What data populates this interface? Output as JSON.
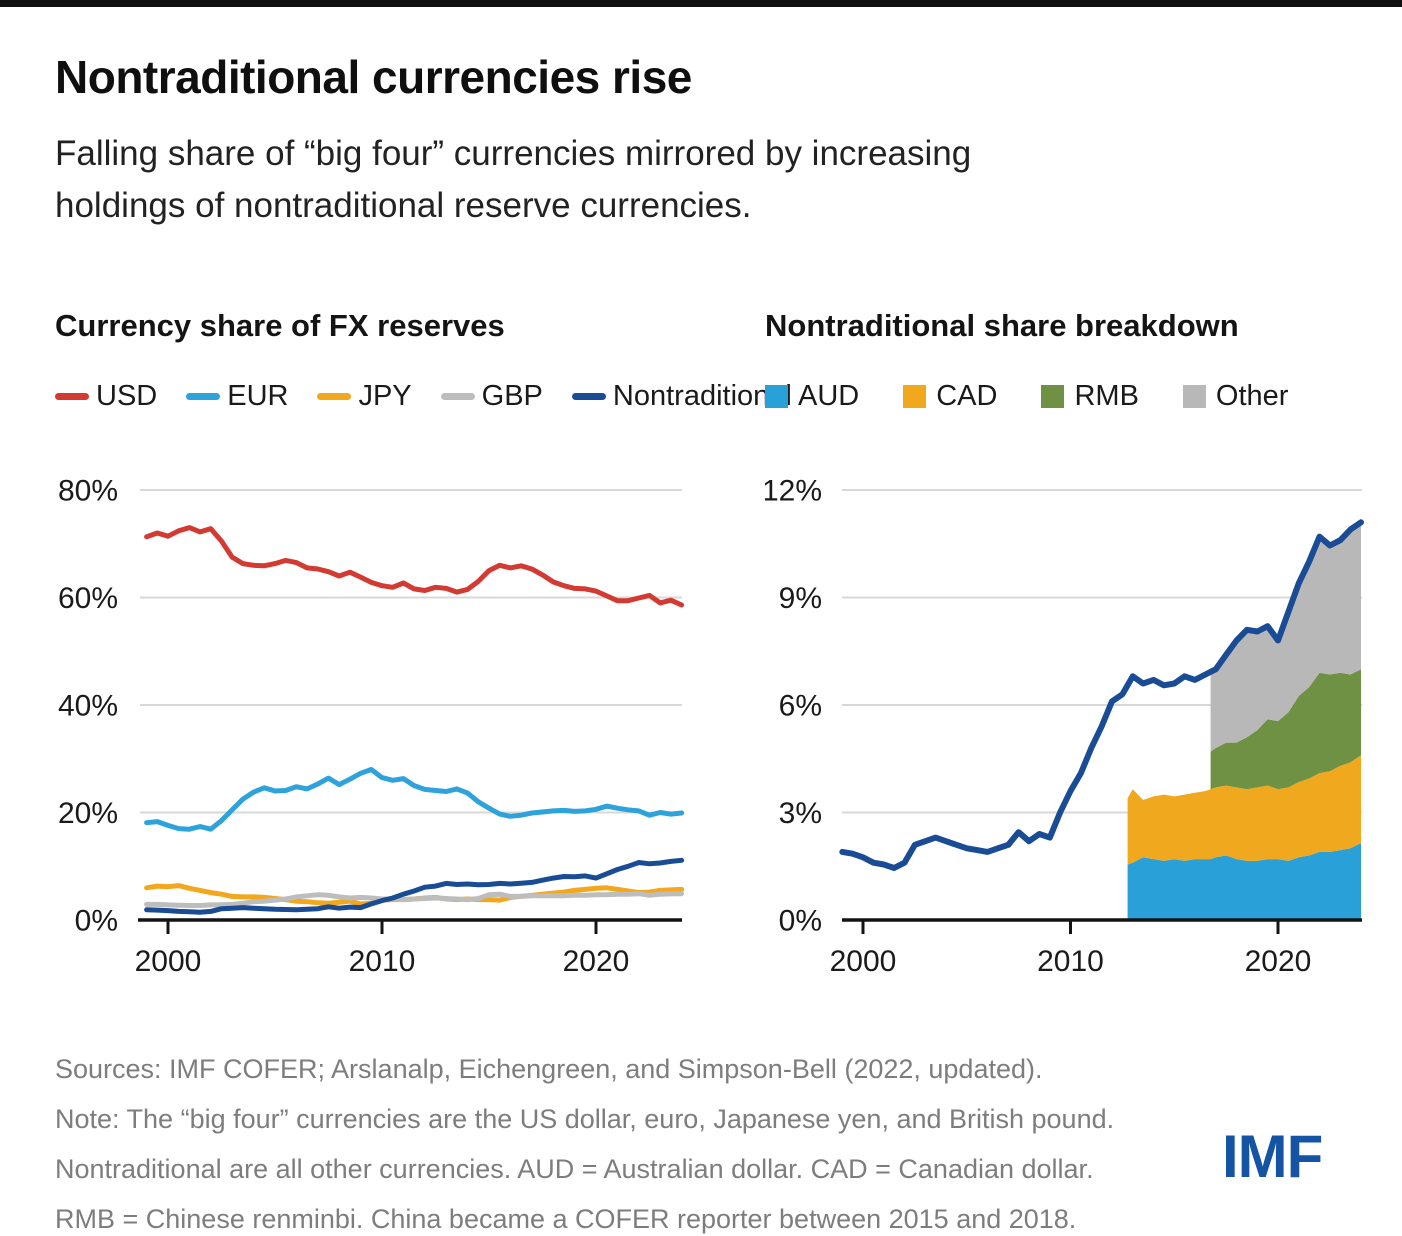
{
  "header": {
    "title": "Nontraditional currencies rise",
    "subtitle_lines": [
      "Falling share of “big four” currencies mirrored by increasing",
      "holdings of nontraditional reserve currencies."
    ]
  },
  "colors": {
    "usd": "#d23a32",
    "eur": "#2ea3db",
    "jpy": "#f2a71c",
    "gbp": "#bdbdbd",
    "nontraditional": "#1a4c96",
    "aud": "#29a0d8",
    "cad": "#f0a81e",
    "rmb": "#6e9144",
    "other": "#b8b8b8",
    "grid": "#d8d8d8",
    "axis": "#141414",
    "logo": "#1553a4"
  },
  "chart_data": [
    {
      "type": "line",
      "title": "Currency share of FX reserves",
      "ylabel": "",
      "xlabel": "",
      "ylim": [
        0,
        80
      ],
      "yticks": [
        {
          "v": 0,
          "label": "0%"
        },
        {
          "v": 20,
          "label": "20%"
        },
        {
          "v": 40,
          "label": "40%"
        },
        {
          "v": 60,
          "label": "60%"
        },
        {
          "v": 80,
          "label": "80%"
        }
      ],
      "xticks": [
        {
          "v": 2000,
          "label": "2000"
        },
        {
          "v": 2010,
          "label": "2010"
        },
        {
          "v": 2020,
          "label": "2020"
        }
      ],
      "legend": [
        {
          "label": "USD",
          "color": "#d23a32",
          "swatch": "line"
        },
        {
          "label": "EUR",
          "color": "#2ea3db",
          "swatch": "line"
        },
        {
          "label": "JPY",
          "color": "#f2a71c",
          "swatch": "line"
        },
        {
          "label": "GBP",
          "color": "#bdbdbd",
          "swatch": "line"
        },
        {
          "label": "Nontraditional",
          "color": "#1a4c96",
          "swatch": "line"
        }
      ],
      "x": [
        1999,
        1999.5,
        2000,
        2000.5,
        2001,
        2001.5,
        2002,
        2002.5,
        2003,
        2003.5,
        2004,
        2004.5,
        2005,
        2005.5,
        2006,
        2006.5,
        2007,
        2007.5,
        2008,
        2008.5,
        2009,
        2009.5,
        2010,
        2010.5,
        2011,
        2011.5,
        2012,
        2012.5,
        2013,
        2013.5,
        2014,
        2014.5,
        2015,
        2015.5,
        2016,
        2016.5,
        2017,
        2017.5,
        2018,
        2018.5,
        2019,
        2019.5,
        2020,
        2020.5,
        2021,
        2021.5,
        2022,
        2022.5,
        2023,
        2023.5,
        2024
      ],
      "series": [
        {
          "name": "USD",
          "color": "#d23a32",
          "values": [
            71.3,
            72.0,
            71.4,
            72.4,
            73.0,
            72.2,
            72.8,
            70.5,
            67.5,
            66.3,
            66.0,
            65.9,
            66.3,
            66.9,
            66.5,
            65.5,
            65.3,
            64.8,
            64.0,
            64.7,
            63.8,
            62.8,
            62.2,
            61.9,
            62.7,
            61.6,
            61.3,
            61.9,
            61.7,
            61.0,
            61.5,
            63.0,
            65.0,
            66.0,
            65.5,
            65.9,
            65.3,
            64.2,
            62.9,
            62.2,
            61.7,
            61.6,
            61.2,
            60.3,
            59.4,
            59.4,
            59.9,
            60.4,
            59.0,
            59.5,
            58.6
          ]
        },
        {
          "name": "EUR",
          "color": "#2ea3db",
          "values": [
            18.1,
            18.3,
            17.6,
            17.0,
            16.9,
            17.4,
            16.9,
            18.5,
            20.5,
            22.5,
            23.8,
            24.6,
            24.0,
            24.1,
            24.8,
            24.4,
            25.3,
            26.4,
            25.2,
            26.2,
            27.3,
            28.0,
            26.5,
            26.0,
            26.3,
            25.0,
            24.3,
            24.1,
            23.9,
            24.4,
            23.6,
            22.0,
            20.8,
            19.7,
            19.3,
            19.5,
            19.9,
            20.1,
            20.3,
            20.4,
            20.2,
            20.3,
            20.6,
            21.2,
            20.8,
            20.5,
            20.3,
            19.5,
            20.0,
            19.7,
            19.9
          ]
        },
        {
          "name": "JPY",
          "color": "#f2a71c",
          "values": [
            6.0,
            6.3,
            6.2,
            6.4,
            5.9,
            5.5,
            5.1,
            4.8,
            4.4,
            4.3,
            4.3,
            4.2,
            4.0,
            3.8,
            3.5,
            3.4,
            3.2,
            3.1,
            3.3,
            3.5,
            3.0,
            3.1,
            3.7,
            3.8,
            3.8,
            3.9,
            4.1,
            4.2,
            3.9,
            3.8,
            3.9,
            3.8,
            3.8,
            3.7,
            4.2,
            4.4,
            4.6,
            4.8,
            5.0,
            5.2,
            5.5,
            5.7,
            5.9,
            6.0,
            5.7,
            5.4,
            5.1,
            5.2,
            5.5,
            5.6,
            5.7
          ]
        },
        {
          "name": "GBP",
          "color": "#bdbdbd",
          "values": [
            2.9,
            2.9,
            2.8,
            2.75,
            2.7,
            2.7,
            2.8,
            2.85,
            2.9,
            3.1,
            3.4,
            3.5,
            3.7,
            3.9,
            4.3,
            4.5,
            4.7,
            4.6,
            4.3,
            4.1,
            4.2,
            4.1,
            3.9,
            3.9,
            3.8,
            3.9,
            4.0,
            4.1,
            4.0,
            3.9,
            3.8,
            4.0,
            4.7,
            4.8,
            4.4,
            4.4,
            4.5,
            4.5,
            4.5,
            4.5,
            4.6,
            4.6,
            4.7,
            4.7,
            4.8,
            4.8,
            4.9,
            4.6,
            4.8,
            4.85,
            4.9
          ]
        },
        {
          "name": "Nontraditional",
          "color": "#1a4c96",
          "values": [
            1.9,
            1.85,
            1.75,
            1.6,
            1.55,
            1.45,
            1.6,
            2.1,
            2.2,
            2.3,
            2.2,
            2.1,
            2.0,
            1.95,
            1.9,
            2.0,
            2.1,
            2.45,
            2.2,
            2.4,
            2.3,
            3.0,
            3.6,
            4.1,
            4.8,
            5.4,
            6.1,
            6.3,
            6.8,
            6.6,
            6.7,
            6.55,
            6.6,
            6.8,
            6.7,
            6.85,
            7.0,
            7.4,
            7.8,
            8.1,
            8.05,
            8.2,
            7.8,
            8.6,
            9.4,
            10.0,
            10.7,
            10.45,
            10.6,
            10.9,
            11.1
          ]
        }
      ]
    },
    {
      "type": "area",
      "title": "Nontraditional share breakdown",
      "ylabel": "",
      "xlabel": "",
      "ylim": [
        0,
        12
      ],
      "yticks": [
        {
          "v": 0,
          "label": "0%"
        },
        {
          "v": 3,
          "label": "3%"
        },
        {
          "v": 6,
          "label": "6%"
        },
        {
          "v": 9,
          "label": "9%"
        },
        {
          "v": 12,
          "label": "12%"
        }
      ],
      "xticks": [
        {
          "v": 2000,
          "label": "2000"
        },
        {
          "v": 2010,
          "label": "2010"
        },
        {
          "v": 2020,
          "label": "2020"
        }
      ],
      "legend": [
        {
          "label": "AUD",
          "color": "#29a0d8",
          "swatch": "square"
        },
        {
          "label": "CAD",
          "color": "#f0a81e",
          "swatch": "square"
        },
        {
          "label": "RMB",
          "color": "#6e9144",
          "swatch": "square"
        },
        {
          "label": "Other",
          "color": "#b8b8b8",
          "swatch": "square"
        }
      ],
      "areas_x": [
        2012.75,
        2013,
        2013.5,
        2014,
        2014.5,
        2015,
        2015.5,
        2016,
        2016.5,
        2016.75,
        2017,
        2017.5,
        2018,
        2018.5,
        2019,
        2019.5,
        2020,
        2020.5,
        2021,
        2021.5,
        2022,
        2022.5,
        2023,
        2023.5,
        2024
      ],
      "areas": [
        {
          "name": "AUD",
          "color": "#29a0d8",
          "values": [
            1.55,
            1.6,
            1.75,
            1.7,
            1.65,
            1.7,
            1.65,
            1.7,
            1.7,
            1.7,
            1.75,
            1.8,
            1.7,
            1.65,
            1.65,
            1.7,
            1.7,
            1.65,
            1.75,
            1.8,
            1.9,
            1.9,
            1.95,
            2.0,
            2.15
          ]
        },
        {
          "name": "CAD",
          "color": "#f0a81e",
          "values": [
            1.85,
            2.05,
            1.6,
            1.75,
            1.85,
            1.75,
            1.85,
            1.85,
            1.9,
            1.95,
            1.95,
            1.95,
            2.0,
            2.0,
            2.05,
            2.05,
            1.95,
            2.05,
            2.1,
            2.15,
            2.2,
            2.25,
            2.35,
            2.4,
            2.45
          ]
        },
        {
          "name": "RMB",
          "color": "#6e9144",
          "values": [
            null,
            null,
            null,
            null,
            null,
            null,
            null,
            null,
            null,
            1.05,
            1.1,
            1.2,
            1.25,
            1.45,
            1.6,
            1.85,
            1.9,
            2.1,
            2.4,
            2.55,
            2.8,
            2.7,
            2.6,
            2.45,
            2.4
          ]
        },
        {
          "name": "Other",
          "color": "#b8b8b8",
          "values": [
            null,
            null,
            null,
            null,
            null,
            null,
            null,
            null,
            null,
            2.15,
            2.2,
            2.45,
            2.85,
            3.0,
            2.75,
            2.6,
            2.25,
            2.8,
            3.15,
            3.5,
            3.8,
            3.6,
            3.7,
            4.05,
            4.0
          ]
        }
      ],
      "line": {
        "name": "Nontraditional",
        "color": "#1a4c96",
        "x": [
          1999,
          1999.5,
          2000,
          2000.5,
          2001,
          2001.5,
          2002,
          2002.5,
          2003,
          2003.5,
          2004,
          2004.5,
          2005,
          2005.5,
          2006,
          2006.5,
          2007,
          2007.5,
          2008,
          2008.5,
          2009,
          2009.5,
          2010,
          2010.5,
          2011,
          2011.5,
          2012,
          2012.5,
          2013,
          2013.5,
          2014,
          2014.5,
          2015,
          2015.5,
          2016,
          2016.5,
          2017,
          2017.5,
          2018,
          2018.5,
          2019,
          2019.5,
          2020,
          2020.5,
          2021,
          2021.5,
          2022,
          2022.5,
          2023,
          2023.5,
          2024
        ],
        "values": [
          1.9,
          1.85,
          1.75,
          1.6,
          1.55,
          1.45,
          1.6,
          2.1,
          2.2,
          2.3,
          2.2,
          2.1,
          2.0,
          1.95,
          1.9,
          2.0,
          2.1,
          2.45,
          2.2,
          2.4,
          2.3,
          3.0,
          3.6,
          4.1,
          4.8,
          5.4,
          6.1,
          6.3,
          6.8,
          6.6,
          6.7,
          6.55,
          6.6,
          6.8,
          6.7,
          6.85,
          7.0,
          7.4,
          7.8,
          8.1,
          8.05,
          8.2,
          7.8,
          8.6,
          9.4,
          10.0,
          10.7,
          10.45,
          10.6,
          10.9,
          11.1
        ]
      }
    }
  ],
  "footer": {
    "lines": [
      "Sources: IMF COFER; Arslanalp, Eichengreen, and Simpson-Bell (2022, updated).",
      "Note: The “big four” currencies are the US dollar, euro, Japanese yen, and British pound.",
      "Nontraditional are all other currencies. AUD = Australian dollar. CAD = Canadian dollar.",
      "RMB = Chinese renminbi. China became a COFER reporter between 2015 and 2018."
    ],
    "logo_text": "IMF"
  }
}
